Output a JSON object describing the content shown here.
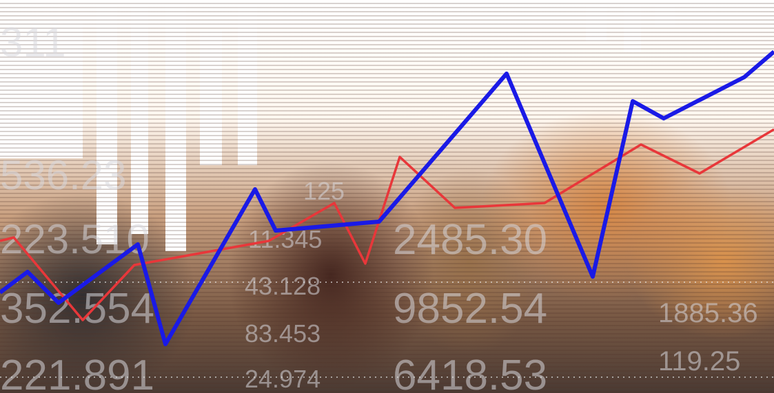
{
  "overlay_numbers": [
    "311",
    "536.23",
    "223.510",
    "352.554",
    "221.891",
    "125",
    "11.345",
    "43.128",
    "83.453",
    "24.974",
    "2485.30",
    "9852.54",
    "6418.53",
    "1885.36",
    "119.25"
  ]
}
